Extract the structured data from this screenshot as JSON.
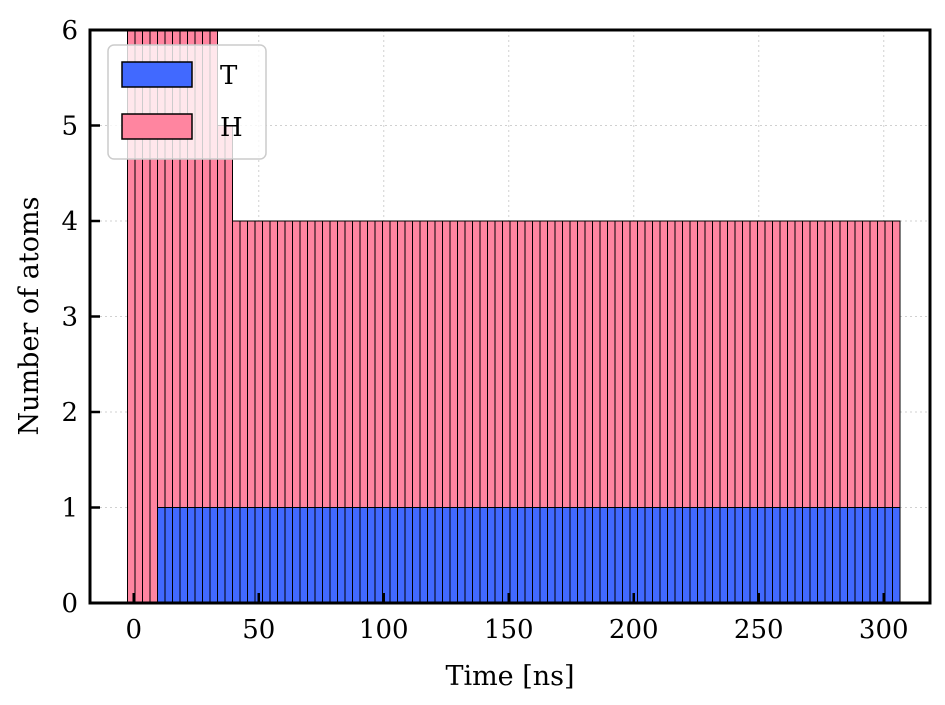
{
  "chart_data": {
    "type": "bar",
    "stacked": true,
    "title": "",
    "xlabel": "Time [ns]",
    "ylabel": "Number of atoms",
    "xlim": [
      -17.5,
      318.5
    ],
    "ylim": [
      0,
      6
    ],
    "xticks": [
      0,
      50,
      100,
      150,
      200,
      250,
      300
    ],
    "yticks": [
      0,
      1,
      2,
      3,
      4,
      5,
      6
    ],
    "grid": true,
    "legend_position": "top-left",
    "bin_start": -2.5,
    "bin_width": 3.0,
    "series": [
      {
        "name": "T",
        "color": "#4169ff",
        "values": [
          0,
          0,
          0,
          0,
          1,
          1,
          1,
          1,
          1,
          1,
          1,
          1,
          1,
          1,
          1,
          1,
          1,
          1,
          1,
          1,
          1,
          1,
          1,
          1,
          1,
          1,
          1,
          1,
          1,
          1,
          1,
          1,
          1,
          1,
          1,
          1,
          1,
          1,
          1,
          1,
          1,
          1,
          1,
          1,
          1,
          1,
          1,
          1,
          1,
          1,
          1,
          1,
          1,
          1,
          1,
          1,
          1,
          1,
          1,
          1,
          1,
          1,
          1,
          1,
          1,
          1,
          1,
          1,
          1,
          1,
          1,
          1,
          1,
          1,
          1,
          1,
          1,
          1,
          1,
          1,
          1,
          1,
          1,
          1,
          1,
          1,
          1,
          1,
          1,
          1,
          1,
          1,
          1,
          1,
          1,
          1,
          1,
          1,
          1,
          1,
          1,
          1,
          1
        ]
      },
      {
        "name": "H",
        "color": "#ff85a0",
        "values": [
          6,
          6,
          6,
          6,
          5,
          5,
          5,
          5,
          5,
          5,
          5,
          5,
          4,
          4,
          3,
          3,
          3,
          3,
          3,
          3,
          3,
          3,
          3,
          3,
          3,
          3,
          3,
          3,
          3,
          3,
          3,
          3,
          3,
          3,
          3,
          3,
          3,
          3,
          3,
          3,
          3,
          3,
          3,
          3,
          3,
          3,
          3,
          3,
          3,
          3,
          3,
          3,
          3,
          3,
          3,
          3,
          3,
          3,
          3,
          3,
          3,
          3,
          3,
          3,
          3,
          3,
          3,
          3,
          3,
          3,
          3,
          3,
          3,
          3,
          3,
          3,
          3,
          3,
          3,
          3,
          3,
          3,
          3,
          3,
          3,
          3,
          3,
          3,
          3,
          3,
          3,
          3,
          3,
          3,
          3,
          3,
          3,
          3,
          3,
          3,
          3,
          3,
          3
        ]
      }
    ]
  }
}
